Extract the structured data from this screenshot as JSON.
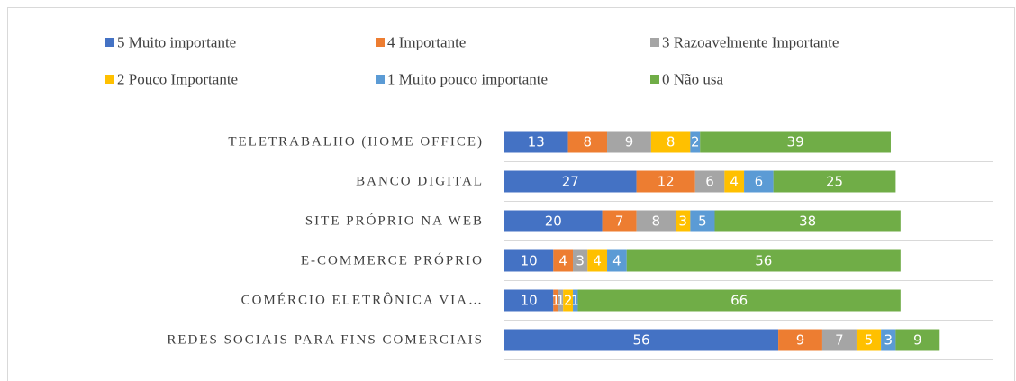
{
  "chart_data": {
    "type": "stacked-bar-horizontal",
    "categories": [
      "TELETRABALHO (HOME OFFICE)",
      "BANCO DIGITAL",
      "SITE PRÓPRIO NA WEB",
      "E-COMMERCE PRÓPRIO",
      "COMÉRCIO ELETRÔNICA VIA…",
      "REDES SOCIAIS PARA FINS COMERCIAIS"
    ],
    "series": [
      {
        "name": "5 Muito importante",
        "color": "#4472c4",
        "values": [
          13,
          27,
          20,
          10,
          10,
          56
        ]
      },
      {
        "name": "4 Importante",
        "color": "#ed7d31",
        "values": [
          8,
          12,
          7,
          4,
          1,
          9
        ]
      },
      {
        "name": "3 Razoavelmente Importante",
        "color": "#a5a5a5",
        "values": [
          9,
          6,
          8,
          3,
          1,
          7
        ]
      },
      {
        "name": "2 Pouco Importante",
        "color": "#ffc000",
        "values": [
          8,
          4,
          3,
          4,
          2,
          5
        ]
      },
      {
        "name": "1 Muito pouco importante",
        "color": "#5b9bd5",
        "values": [
          2,
          6,
          5,
          4,
          1,
          3
        ]
      },
      {
        "name": "0 Não usa",
        "color": "#70ad47",
        "values": [
          39,
          25,
          38,
          56,
          66,
          9
        ]
      }
    ],
    "xlim": [
      0,
      100
    ],
    "legend": "top"
  }
}
